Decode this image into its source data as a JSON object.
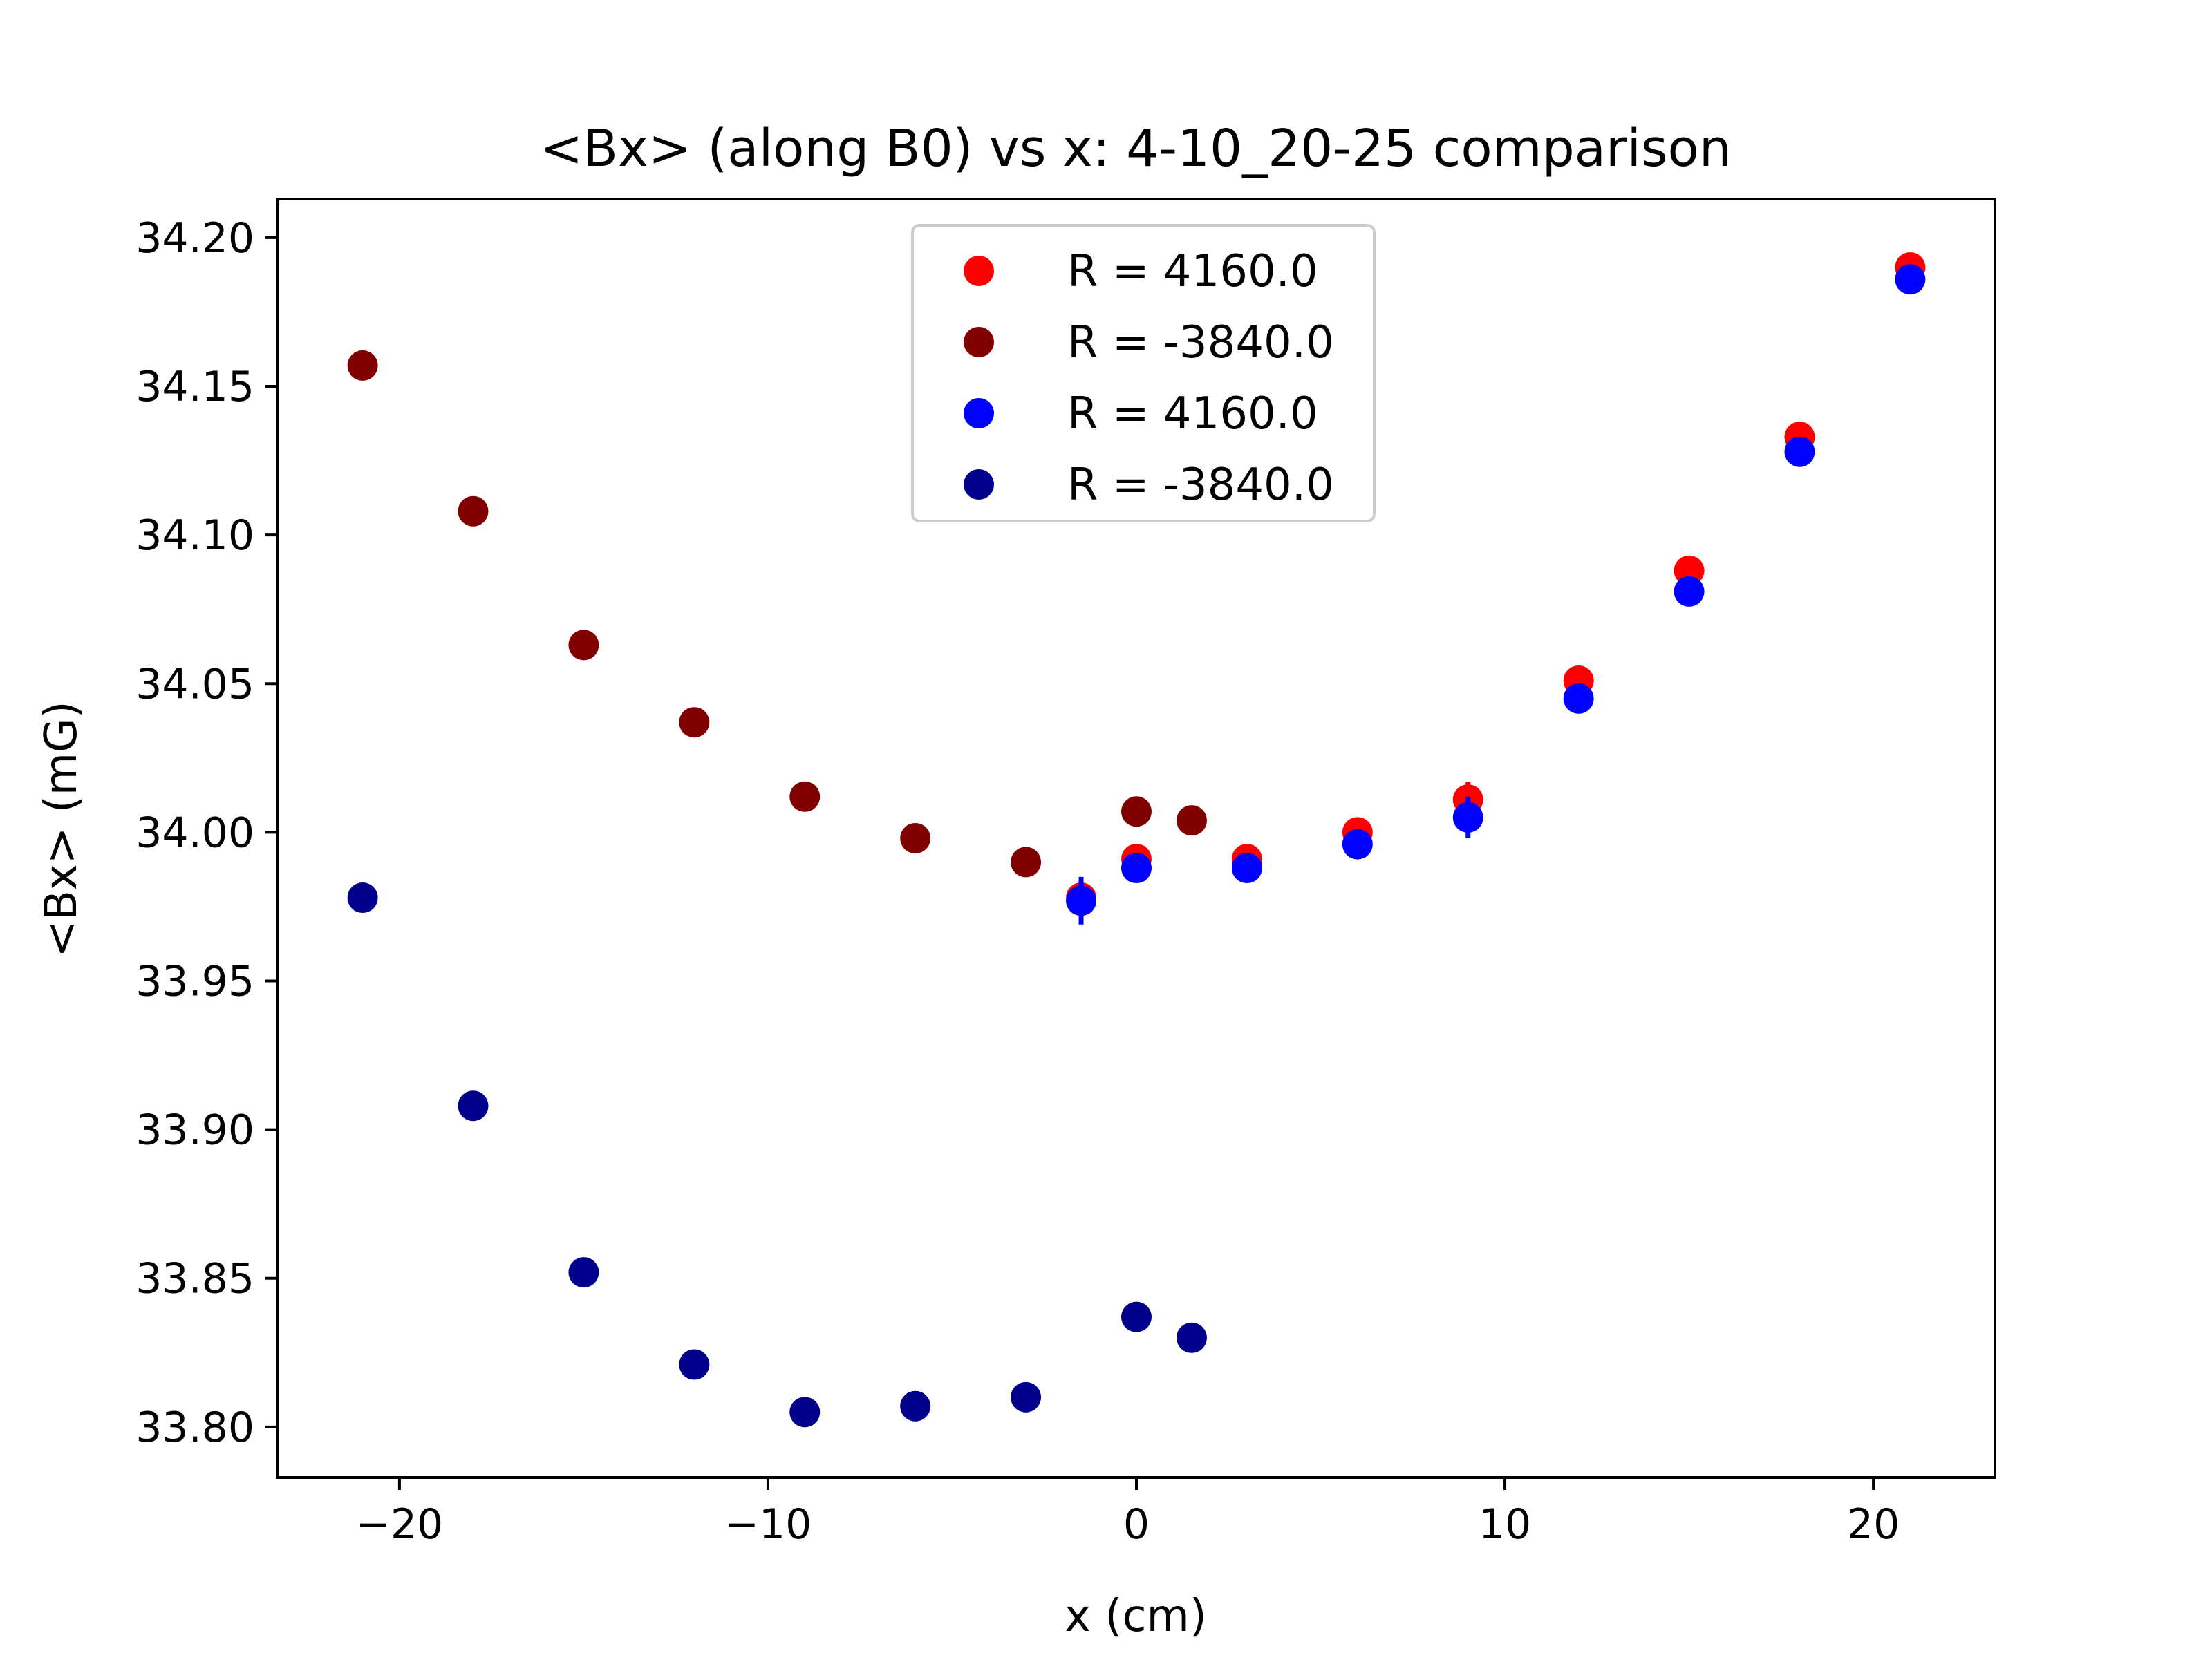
{
  "chart_data": {
    "type": "scatter",
    "title": "<Bx> (along B0) vs x: 4-10_20-25 comparison",
    "xlabel": "x (cm)",
    "ylabel": "<Bx> (mG)",
    "xlim": [
      -23.3,
      23.3
    ],
    "ylim": [
      33.783,
      34.213
    ],
    "xticks": [
      -20,
      -10,
      0,
      10,
      20
    ],
    "xtick_labels": [
      "−20",
      "−10",
      "0",
      "10",
      "20"
    ],
    "yticks": [
      33.8,
      33.85,
      33.9,
      33.95,
      34.0,
      34.05,
      34.1,
      34.15,
      34.2
    ],
    "ytick_labels": [
      "33.80",
      "33.85",
      "33.90",
      "33.95",
      "34.00",
      "34.05",
      "34.10",
      "34.15",
      "34.20"
    ],
    "grid": false,
    "legend_position": "top-center",
    "series": [
      {
        "name": "R = 4160.0",
        "color": "#ff0000",
        "x": [
          -1.5,
          0,
          3,
          6,
          9,
          12,
          15,
          18,
          21
        ],
        "y": [
          33.978,
          33.991,
          33.991,
          34.0,
          34.011,
          34.051,
          34.088,
          34.133,
          34.19
        ],
        "yerr": [
          0.006,
          0.001,
          0.001,
          0.001,
          0.006,
          0.001,
          0.001,
          0.001,
          0.001
        ]
      },
      {
        "name": "R = -3840.0",
        "color": "#800000",
        "x": [
          -21,
          -18,
          -15,
          -12,
          -9,
          -6,
          -3,
          0,
          1.5
        ],
        "y": [
          34.157,
          34.108,
          34.063,
          34.037,
          34.012,
          33.998,
          33.99,
          34.007,
          34.004
        ],
        "yerr": [
          0.001,
          0.001,
          0.001,
          0.001,
          0.001,
          0.001,
          0.001,
          0.001,
          0.001
        ]
      },
      {
        "name": "R = 4160.0",
        "color": "#0000ff",
        "x": [
          -1.5,
          0,
          3,
          6,
          9,
          12,
          15,
          18,
          21
        ],
        "y": [
          33.977,
          33.988,
          33.988,
          33.996,
          34.005,
          34.045,
          34.081,
          34.128,
          34.186
        ],
        "yerr": [
          0.008,
          0.001,
          0.001,
          0.001,
          0.007,
          0.001,
          0.001,
          0.001,
          0.001
        ]
      },
      {
        "name": "R = -3840.0",
        "color": "#00008b",
        "x": [
          -21,
          -18,
          -15,
          -12,
          -9,
          -6,
          -3,
          0,
          1.5
        ],
        "y": [
          33.978,
          33.908,
          33.852,
          33.821,
          33.805,
          33.807,
          33.81,
          33.837,
          33.83
        ],
        "yerr": [
          0.001,
          0.001,
          0.001,
          0.001,
          0.001,
          0.001,
          0.001,
          0.001,
          0.001
        ]
      }
    ]
  }
}
